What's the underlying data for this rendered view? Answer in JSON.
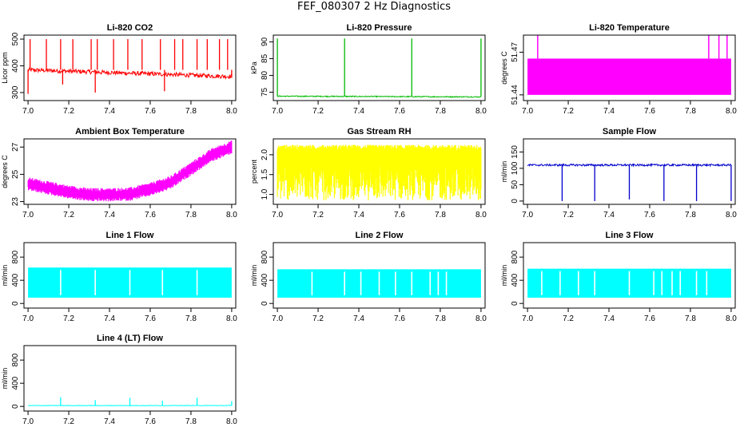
{
  "page": {
    "title": "FEF_080307  2 Hz Diagnostics"
  },
  "chart_data": [
    {
      "id": "co2",
      "type": "line",
      "title": "Li-820 CO2",
      "ylabel": "Licor ppm",
      "color": "#ff0000",
      "xlim": [
        6.98,
        8.02
      ],
      "ylim": [
        270,
        515
      ],
      "xticks": [
        "7.0",
        "7.2",
        "7.4",
        "7.6",
        "7.8",
        "8.0"
      ],
      "yticks": [
        {
          "v": 300,
          "label": "300"
        },
        {
          "v": 400,
          "label": "400"
        },
        {
          "v": 500,
          "label": "500"
        }
      ],
      "baseline": 385,
      "baseline_end": 360,
      "noise": 8,
      "spikes_up": [
        7.01,
        7.09,
        7.16,
        7.22,
        7.31,
        7.34,
        7.42,
        7.49,
        7.56,
        7.65,
        7.72,
        7.76,
        7.83,
        7.88,
        7.94,
        7.98
      ],
      "spike_up_to": 500,
      "spikes_down": [
        {
          "x": 7.0,
          "y": 295
        },
        {
          "x": 7.17,
          "y": 330
        },
        {
          "x": 7.33,
          "y": 300
        },
        {
          "x": 7.67,
          "y": 305
        },
        {
          "x": 8.0,
          "y": 355
        }
      ]
    },
    {
      "id": "pressure",
      "type": "line",
      "title": "Li-820 Pressure",
      "ylabel": "kPa",
      "color": "#00bb00",
      "xlim": [
        6.98,
        8.02
      ],
      "ylim": [
        72.5,
        92
      ],
      "xticks": [
        "7.0",
        "7.2",
        "7.4",
        "7.6",
        "7.8",
        "8.0"
      ],
      "yticks": [
        {
          "v": 75,
          "label": "75"
        },
        {
          "v": 80,
          "label": "80"
        },
        {
          "v": 85,
          "label": "85"
        },
        {
          "v": 90,
          "label": "90"
        }
      ],
      "baseline": 73.8,
      "baseline_end": 73.6,
      "noise": 0.15,
      "spikes_up": [
        7.0,
        7.33,
        7.66,
        8.0
      ],
      "spike_up_to": 91,
      "spikes_down": []
    },
    {
      "id": "temperature",
      "type": "area",
      "title": "Li-820 Temperature",
      "ylabel": "degrees C",
      "color": "#ff00ff",
      "xlim": [
        6.98,
        8.02
      ],
      "ylim": [
        51.436,
        51.482
      ],
      "xticks": [
        "7.0",
        "7.2",
        "7.4",
        "7.6",
        "7.8",
        "8.0"
      ],
      "yticks": [
        {
          "v": 51.44,
          "label": "51.44"
        },
        {
          "v": 51.47,
          "label": "51.47"
        }
      ],
      "band": [
        51.44,
        51.4655
      ],
      "spikes_up": [
        7.05,
        7.89,
        7.94,
        7.98
      ],
      "spike_up_to": 51.482
    },
    {
      "id": "box_temp",
      "type": "line",
      "title": "Ambient Box Temperature",
      "ylabel": "degrees C",
      "color": "#ff00ff",
      "xlim": [
        6.98,
        8.02
      ],
      "ylim": [
        22.8,
        27.6
      ],
      "xticks": [
        "7.0",
        "7.2",
        "7.4",
        "7.6",
        "7.8",
        "8.0"
      ],
      "yticks": [
        {
          "v": 23,
          "label": "23"
        },
        {
          "v": 25,
          "label": "25"
        },
        {
          "v": 27,
          "label": "27"
        }
      ],
      "curve": [
        [
          7.0,
          24.3
        ],
        [
          7.1,
          24.0
        ],
        [
          7.2,
          23.7
        ],
        [
          7.3,
          23.5
        ],
        [
          7.4,
          23.5
        ],
        [
          7.5,
          23.55
        ],
        [
          7.6,
          23.9
        ],
        [
          7.7,
          24.4
        ],
        [
          7.8,
          25.4
        ],
        [
          7.9,
          26.4
        ],
        [
          8.0,
          27.0
        ]
      ],
      "band_width": 0.9
    },
    {
      "id": "gas_rh",
      "type": "line",
      "title": "Gas Stream RH",
      "ylabel": "percent",
      "color": "#ffff00",
      "xlim": [
        6.98,
        8.02
      ],
      "ylim": [
        0.75,
        2.4
      ],
      "xticks": [
        "7.0",
        "7.2",
        "7.4",
        "7.6",
        "7.8",
        "8.0"
      ],
      "yticks": [
        {
          "v": 1.0,
          "label": "1.0"
        },
        {
          "v": 1.5,
          "label": "1.5"
        },
        {
          "v": 2.0,
          "label": "2.0"
        }
      ],
      "noise_top": 2.1,
      "noise_floor": 0.85
    },
    {
      "id": "sample_flow",
      "type": "line",
      "title": "Sample Flow",
      "ylabel": "ml/min",
      "color": "#0000cc",
      "xlim": [
        6.98,
        8.02
      ],
      "ylim": [
        -10,
        190
      ],
      "xticks": [
        "7.0",
        "7.2",
        "7.4",
        "7.6",
        "7.8",
        "8.0"
      ],
      "yticks": [
        {
          "v": 0,
          "label": "0"
        },
        {
          "v": 50,
          "label": "50"
        },
        {
          "v": 100,
          "label": "100"
        },
        {
          "v": 150,
          "label": "150"
        }
      ],
      "baseline": 110,
      "noise": 3,
      "spikes_down": [
        {
          "x": 7.17,
          "y": 0
        },
        {
          "x": 7.33,
          "y": 0
        },
        {
          "x": 7.5,
          "y": 5
        },
        {
          "x": 7.67,
          "y": 0
        },
        {
          "x": 7.83,
          "y": 0
        },
        {
          "x": 8.0,
          "y": 0
        }
      ]
    },
    {
      "id": "line1",
      "type": "area",
      "title": "Line 1 Flow",
      "ylabel": "ml/min",
      "color": "#00ffff",
      "xlim": [
        6.98,
        8.02
      ],
      "ylim": [
        -80,
        1050
      ],
      "xticks": [
        "7.0",
        "7.2",
        "7.4",
        "7.6",
        "7.8",
        "8.0"
      ],
      "yticks": [
        {
          "v": 0,
          "label": "0"
        },
        {
          "v": 400,
          "label": "400"
        },
        {
          "v": 800,
          "label": "800"
        }
      ],
      "band": [
        100,
        620
      ],
      "gaps": [
        7.16,
        7.33,
        7.5,
        7.66,
        7.83
      ]
    },
    {
      "id": "line2",
      "type": "area",
      "title": "Line 2 Flow",
      "ylabel": "ml/min",
      "color": "#00ffff",
      "xlim": [
        6.98,
        8.02
      ],
      "ylim": [
        -80,
        1050
      ],
      "xticks": [
        "7.0",
        "7.2",
        "7.4",
        "7.6",
        "7.8",
        "8.0"
      ],
      "yticks": [
        {
          "v": 0,
          "label": "0"
        },
        {
          "v": 400,
          "label": "400"
        },
        {
          "v": 800,
          "label": "800"
        }
      ],
      "band": [
        100,
        590
      ],
      "gaps": [
        7.17,
        7.33,
        7.41,
        7.5,
        7.58,
        7.66,
        7.75,
        7.79,
        7.83
      ]
    },
    {
      "id": "line3",
      "type": "area",
      "title": "Line 3 Flow",
      "ylabel": "ml/min",
      "color": "#00ffff",
      "xlim": [
        6.98,
        8.02
      ],
      "ylim": [
        -80,
        1050
      ],
      "xticks": [
        "7.0",
        "7.2",
        "7.4",
        "7.6",
        "7.8",
        "8.0"
      ],
      "yticks": [
        {
          "v": 0,
          "label": "0"
        },
        {
          "v": 400,
          "label": "400"
        },
        {
          "v": 800,
          "label": "800"
        }
      ],
      "band": [
        100,
        600
      ],
      "gaps": [
        7.07,
        7.16,
        7.25,
        7.33,
        7.5,
        7.62,
        7.66,
        7.71,
        7.75,
        7.83,
        7.88
      ]
    },
    {
      "id": "line4",
      "type": "line",
      "title": "Line 4 (LT) Flow",
      "ylabel": "ml/min",
      "color": "#00ffff",
      "xlim": [
        6.98,
        8.02
      ],
      "ylim": [
        -80,
        1050
      ],
      "xticks": [
        "7.0",
        "7.2",
        "7.4",
        "7.6",
        "7.8",
        "8.0"
      ],
      "yticks": [
        {
          "v": 0,
          "label": "0"
        },
        {
          "v": 400,
          "label": "400"
        },
        {
          "v": 800,
          "label": "800"
        }
      ],
      "baseline": 15,
      "noise": 4,
      "spikes_up": [
        {
          "x": 7.16,
          "y": 160
        },
        {
          "x": 7.33,
          "y": 110
        },
        {
          "x": 7.5,
          "y": 150
        },
        {
          "x": 7.66,
          "y": 100
        },
        {
          "x": 7.83,
          "y": 150
        },
        {
          "x": 8.0,
          "y": 90
        }
      ]
    }
  ]
}
